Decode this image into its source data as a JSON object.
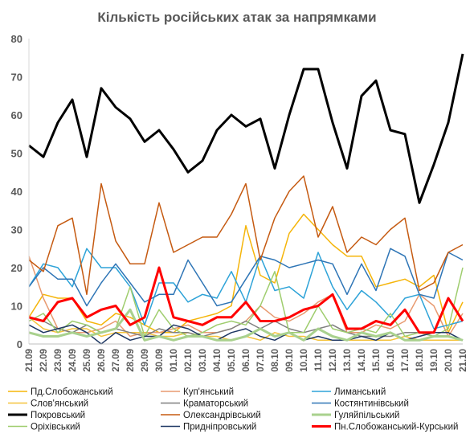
{
  "chart_data": {
    "type": "line",
    "title": "Кількість російських атак за напрямками",
    "ylim": [
      0,
      80
    ],
    "yticks": [
      0,
      10,
      20,
      30,
      40,
      50,
      60,
      70,
      80
    ],
    "grid": false,
    "legend_position": "bottom",
    "categories": [
      "21.09",
      "22.09",
      "23.09",
      "24.09",
      "25.09",
      "26.09",
      "27.09",
      "28.09",
      "29.09",
      "30.09",
      "01.10",
      "02.10",
      "03.10",
      "04.10",
      "05.10",
      "06.10",
      "07.10",
      "08.10",
      "09.10",
      "10.10",
      "11.10",
      "12.10",
      "13.10",
      "14.10",
      "15.10",
      "16.10",
      "17.10",
      "18.10",
      "19.10",
      "20.10",
      "21.10"
    ],
    "series": [
      {
        "name": "Пд.Слобожанський",
        "color": "#f5b50a",
        "width": 1.5,
        "values": [
          7,
          13,
          12,
          12,
          6,
          5,
          8,
          7,
          5,
          3,
          3,
          6,
          7,
          8,
          10,
          31,
          18,
          16,
          29,
          34,
          30,
          26,
          23,
          23,
          15,
          16,
          17,
          15,
          18,
          3,
          11
        ]
      },
      {
        "name": "Куп'янський",
        "color": "#e89a70",
        "width": 1.5,
        "values": [
          23,
          12,
          4,
          3,
          3,
          4,
          6,
          2,
          3,
          3,
          4,
          5,
          3,
          3,
          4,
          6,
          10,
          7,
          6,
          8,
          11,
          13,
          3,
          3,
          5,
          4,
          6,
          13,
          10,
          2,
          8
        ]
      },
      {
        "name": "Лиманський",
        "color": "#2ea3d8",
        "width": 1.5,
        "values": [
          15,
          21,
          20,
          15,
          25,
          20,
          20,
          15,
          5,
          16,
          16,
          11,
          13,
          12,
          19,
          11,
          23,
          14,
          15,
          12,
          24,
          15,
          9,
          14,
          11,
          7,
          12,
          13,
          4,
          5,
          6
        ]
      },
      {
        "name": "Слов'янський",
        "color": "#f5c33b",
        "width": 1.5,
        "values": [
          7,
          4,
          3,
          4,
          4,
          2,
          3,
          3,
          3,
          2,
          2,
          3,
          2,
          2,
          1,
          2,
          1,
          3,
          2,
          2,
          1,
          1,
          1,
          1,
          1,
          1,
          2,
          1,
          1,
          1,
          1
        ]
      },
      {
        "name": "Краматорський",
        "color": "#7f7f7f",
        "width": 1.5,
        "values": [
          7,
          6,
          4,
          3,
          5,
          3,
          4,
          3,
          2,
          4,
          3,
          3,
          2,
          3,
          4,
          6,
          4,
          6,
          4,
          3,
          4,
          5,
          3,
          2,
          2,
          2,
          3,
          3,
          2,
          2,
          1
        ]
      },
      {
        "name": "Костянтинівський",
        "color": "#2e75b6",
        "width": 1.5,
        "values": [
          15,
          20,
          17,
          17,
          10,
          16,
          21,
          16,
          11,
          13,
          13,
          22,
          16,
          10,
          11,
          17,
          23,
          22,
          20,
          21,
          22,
          21,
          13,
          21,
          14,
          25,
          23,
          13,
          12,
          24,
          22
        ]
      },
      {
        "name": "Покровський",
        "color": "#000000",
        "width": 3,
        "values": [
          52,
          49,
          58,
          64,
          49,
          67,
          62,
          59,
          53,
          56,
          51,
          45,
          48,
          56,
          60,
          57,
          59,
          46,
          60,
          72,
          72,
          58,
          46,
          65,
          69,
          56,
          55,
          37,
          47,
          58,
          76
        ]
      },
      {
        "name": "Олександрівський",
        "color": "#c55a11",
        "width": 1.5,
        "values": [
          22,
          19,
          31,
          33,
          13,
          42,
          27,
          21,
          21,
          37,
          24,
          26,
          28,
          28,
          34,
          42,
          22,
          33,
          40,
          44,
          28,
          36,
          24,
          28,
          26,
          30,
          33,
          14,
          16,
          24,
          26
        ]
      },
      {
        "name": "Гуляйпільський",
        "color": "#a9d18e",
        "width": 3,
        "values": [
          3,
          2,
          2,
          3,
          2,
          3,
          4,
          9,
          1,
          2,
          1,
          2,
          2,
          1,
          1,
          2,
          4,
          2,
          3,
          1,
          4,
          2,
          1,
          3,
          2,
          3,
          1,
          1,
          2,
          2,
          1
        ]
      },
      {
        "name": "Оріхівський",
        "color": "#9fcd6e",
        "width": 1.5,
        "values": [
          6,
          8,
          3,
          6,
          5,
          3,
          4,
          15,
          2,
          9,
          4,
          2,
          3,
          5,
          6,
          5,
          10,
          19,
          3,
          3,
          10,
          4,
          3,
          4,
          3,
          8,
          2,
          3,
          2,
          4,
          20
        ]
      },
      {
        "name": "Придніпровський",
        "color": "#1f3864",
        "width": 1.5,
        "values": [
          5,
          3,
          4,
          5,
          3,
          0,
          3,
          1,
          2,
          2,
          5,
          4,
          2,
          1,
          3,
          4,
          2,
          1,
          3,
          1,
          2,
          1,
          1,
          2,
          1,
          3,
          1,
          2,
          3,
          3,
          1
        ]
      },
      {
        "name": "Пн.Слобожанський-Курський",
        "color": "#ff0000",
        "width": 3,
        "values": [
          7,
          6,
          11,
          12,
          7,
          9,
          10,
          5,
          7,
          20,
          7,
          6,
          5,
          7,
          7,
          11,
          6,
          6,
          7,
          9,
          10,
          13,
          4,
          4,
          6,
          5,
          9,
          3,
          3,
          12,
          6
        ]
      }
    ]
  }
}
